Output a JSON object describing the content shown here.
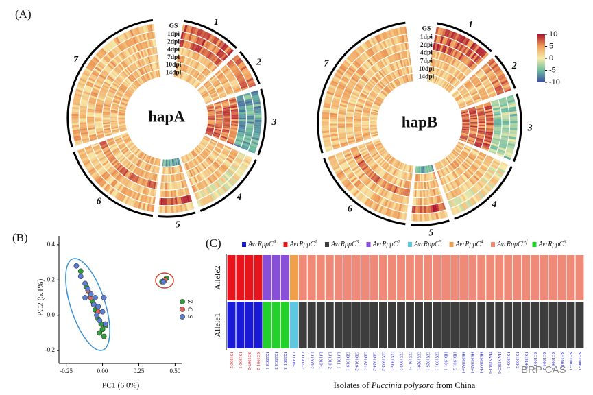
{
  "chart_data": [
    {
      "type": "circular-heatmap",
      "label": "(A)",
      "tracks": [
        "GS",
        "1dpi",
        "2dpi",
        "4dpi",
        "7dpi",
        "10dpi",
        "14dpi"
      ],
      "plots": [
        {
          "title": "hapA",
          "sectors": [
            "1",
            "2",
            "3",
            "4",
            "5",
            "6",
            "7"
          ]
        },
        {
          "title": "hapB",
          "sectors": [
            "1",
            "2",
            "3",
            "4",
            "5",
            "6",
            "7"
          ]
        }
      ],
      "colorbar": {
        "lim": [
          -10,
          10
        ],
        "ticks": [
          10,
          5,
          0,
          -5,
          -10
        ]
      }
    },
    {
      "type": "scatter",
      "label": "(B)",
      "xlabel": "PC1 (6.0%)",
      "ylabel": "PC2 (5.1%)",
      "xlim": [
        -0.3,
        0.55
      ],
      "ylim": [
        -0.25,
        0.45
      ],
      "xticks": [
        {
          "value": -0.25,
          "label": "-0.25"
        },
        {
          "value": 0,
          "label": "0.00"
        },
        {
          "value": 0.25,
          "label": "0.25"
        },
        {
          "value": 0.5,
          "label": "0.50"
        }
      ],
      "yticks": [
        {
          "value": -0.2,
          "label": "-0.2"
        },
        {
          "value": 0,
          "label": "0.0"
        },
        {
          "value": 0.2,
          "label": "0.2"
        },
        {
          "value": 0.4,
          "label": "0.4"
        }
      ],
      "series": [
        {
          "name": "Z",
          "color": "#2e9e3a",
          "x": [
            -0.15,
            -0.11,
            -0.07,
            -0.05,
            -0.03,
            -0.01,
            0.0,
            0.02,
            -0.02,
            0.01,
            0.41,
            0.44
          ],
          "y": [
            0.25,
            0.16,
            0.08,
            0.03,
            -0.02,
            -0.05,
            -0.08,
            -0.06,
            -0.1,
            -0.12,
            0.19,
            0.21
          ]
        },
        {
          "name": "C",
          "color": "#e0625a",
          "x": [
            -0.1,
            -0.08,
            -0.06,
            -0.03,
            0.43
          ],
          "y": [
            0.14,
            0.1,
            0.06,
            0.02,
            0.2
          ]
        },
        {
          "name": "S",
          "color": "#5b7fd6",
          "x": [
            -0.18,
            -0.15,
            -0.12,
            -0.1,
            -0.08,
            -0.05,
            -0.06,
            -0.03,
            -0.04,
            0.0,
            -0.02,
            0.02,
            0.01,
            -0.12,
            0.42
          ],
          "y": [
            0.28,
            0.22,
            0.18,
            0.15,
            0.12,
            0.1,
            0.06,
            0.05,
            0.0,
            0.02,
            -0.03,
            -0.05,
            0.1,
            0.1,
            0.19
          ]
        }
      ]
    },
    {
      "type": "stacked-bar",
      "label": "(C)",
      "legend": [
        {
          "name": "AvrRppC",
          "sup": "A",
          "color": "#1a1ad6"
        },
        {
          "name": "AvrRppC",
          "sup": "1",
          "color": "#e8141c"
        },
        {
          "name": "AvrRppC",
          "sup": "3",
          "color": "#3d3d3d"
        },
        {
          "name": "AvrRppC",
          "sup": "2",
          "color": "#8a4fd8"
        },
        {
          "name": "AvrRppC",
          "sup": "5",
          "color": "#5ec8e0"
        },
        {
          "name": "AvrRppC",
          "sup": "4",
          "color": "#f0a04a"
        },
        {
          "name": "AvrRppC",
          "sup": "ref",
          "color": "#f08a78"
        },
        {
          "name": "AvrRppC",
          "sup": "6",
          "color": "#22d12a"
        }
      ],
      "rows": [
        "Allele2",
        "Allele1"
      ],
      "isolates": [
        "JS1902-2",
        "JS1902-1",
        "SD1907-2",
        "SD1901-2",
        "JX1903-1",
        "JX1903-2",
        "JX1901-3",
        "LJ1906-1",
        "LJ1907-2",
        "LJ1905-2",
        "LJ1910-1",
        "LJ1910-2",
        "LJ1911-1",
        "GD1919-1",
        "GD1919-2",
        "GD1921-1",
        "GD1924-2",
        "GX1902-2",
        "GX1905-1",
        "GX1905-2",
        "GX1911-1",
        "GX1920-1",
        "GX1925-1",
        "GX1931-1",
        "HB1901-1",
        "HB1901-2",
        "HEN1925-1",
        "HEN1926-1",
        "HEN1904-1",
        "HAN1901-1",
        "HAN1905-1",
        "JS1905-1",
        "JS1908-2",
        "JS1914-2",
        "SC1901-1",
        "SC1904-2",
        "SC1906-1",
        "SH1901-1",
        "SH1902-1",
        "SH1906-1"
      ],
      "label_colors": [
        "#e8141c",
        "#e8141c",
        "#e8141c",
        "#e8141c",
        "#1a1ad6",
        "#1a1ad6",
        "#1a1ad6",
        "#1a1ad6",
        "#1a1ad6",
        "#1a1ad6",
        "#1a1ad6",
        "#1a1ad6",
        "#1a1ad6",
        "#1a1ad6",
        "#1a1ad6",
        "#1a1ad6",
        "#1a1ad6",
        "#1a1ad6",
        "#1a1ad6",
        "#1a1ad6",
        "#1a1ad6",
        "#1a1ad6",
        "#1a1ad6",
        "#1a1ad6",
        "#1a1ad6",
        "#1a1ad6",
        "#1a1ad6",
        "#1a1ad6",
        "#1a1ad6",
        "#1a1ad6",
        "#1a1ad6",
        "#1a1ad6",
        "#1a1ad6",
        "#1a1ad6",
        "#1a1ad6",
        "#1a1ad6",
        "#1a1ad6",
        "#1a1ad6",
        "#1a1ad6",
        "#1a1ad6"
      ],
      "allele2": [
        "1",
        "1",
        "1",
        "1",
        "2",
        "2",
        "2",
        "4",
        "ref",
        "ref",
        "ref",
        "ref",
        "ref",
        "ref",
        "ref",
        "ref",
        "ref",
        "ref",
        "ref",
        "ref",
        "ref",
        "ref",
        "ref",
        "ref",
        "ref",
        "ref",
        "ref",
        "ref",
        "ref",
        "ref",
        "ref",
        "ref",
        "ref",
        "ref",
        "ref",
        "ref",
        "ref",
        "ref",
        "ref",
        "ref"
      ],
      "allele1": [
        "A",
        "A",
        "A",
        "A",
        "6",
        "6",
        "6",
        "5",
        "3",
        "3",
        "3",
        "3",
        "3",
        "3",
        "3",
        "3",
        "3",
        "3",
        "3",
        "3",
        "3",
        "3",
        "3",
        "3",
        "3",
        "3",
        "3",
        "3",
        "3",
        "3",
        "3",
        "3",
        "3",
        "3",
        "3",
        "3",
        "3",
        "3",
        "3",
        "3"
      ],
      "xlabel": [
        "Isolates of ",
        "Puccinia polysora",
        " from China"
      ],
      "watermark": "BRP CAS"
    }
  ]
}
